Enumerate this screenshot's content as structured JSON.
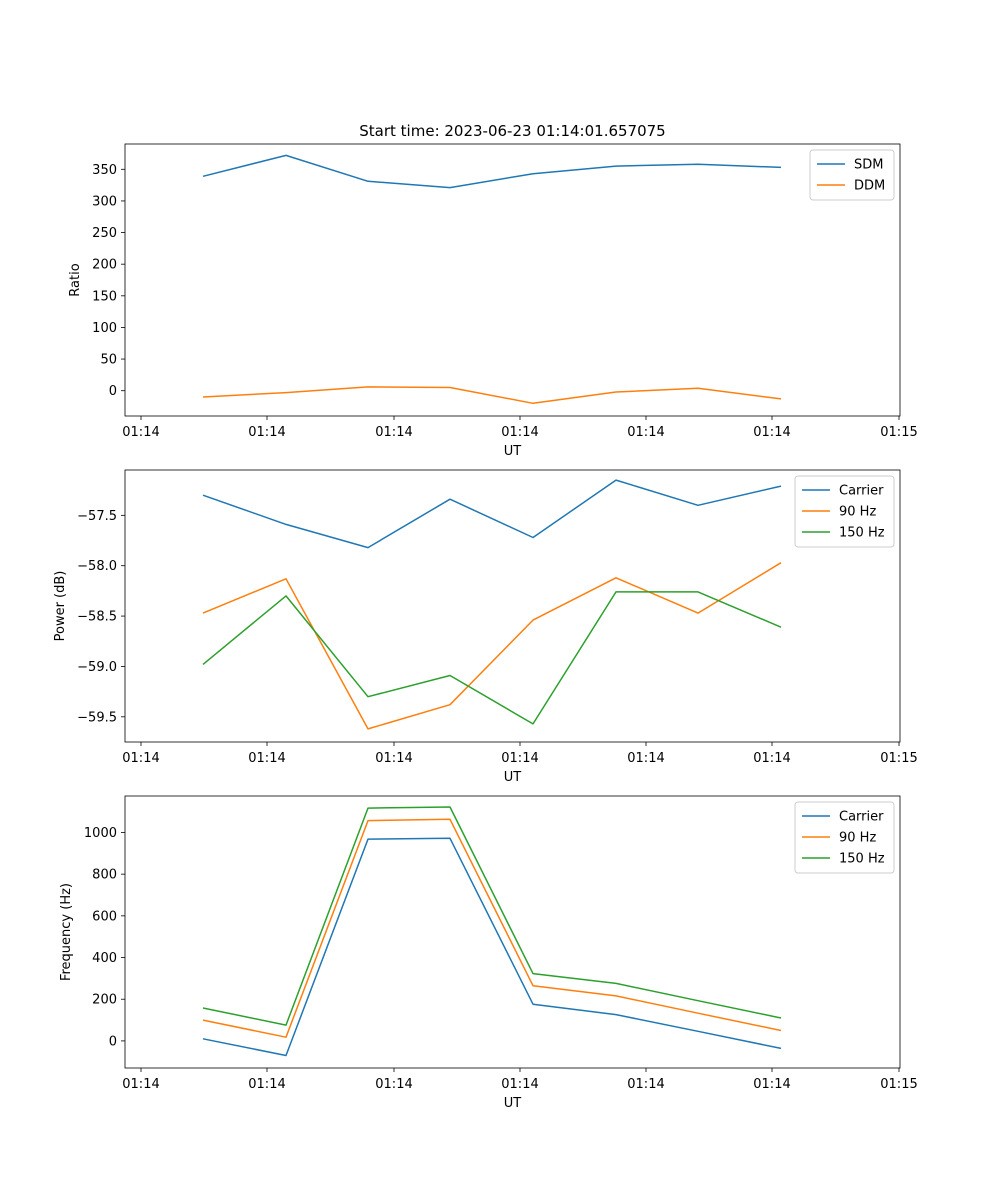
{
  "figure": {
    "title": "Start time: 2023-06-23 01:14:01.657075"
  },
  "chart_data": [
    {
      "type": "line",
      "xlabel": "UT",
      "ylabel": "Ratio",
      "xticks": [
        "01:14",
        "01:14",
        "01:14",
        "01:14",
        "01:14",
        "01:14",
        "01:15"
      ],
      "yticks": [
        0,
        50,
        100,
        150,
        200,
        250,
        300,
        350
      ],
      "ylim": [
        -40,
        390
      ],
      "grid": false,
      "legend_position": "upper-right",
      "series": [
        {
          "name": "SDM",
          "color": "#1f77b4",
          "values": [
            339,
            372,
            331,
            321,
            343,
            355,
            358,
            353
          ]
        },
        {
          "name": "DDM",
          "color": "#ff7f0e",
          "values": [
            -10,
            -3,
            6,
            5,
            -20,
            -2,
            4,
            -13
          ]
        }
      ]
    },
    {
      "type": "line",
      "xlabel": "UT",
      "ylabel": "Power (dB)",
      "xticks": [
        "01:14",
        "01:14",
        "01:14",
        "01:14",
        "01:14",
        "01:14",
        "01:15"
      ],
      "yticks": [
        -57.5,
        -58.0,
        -58.5,
        -59.0,
        -59.5
      ],
      "ytick_labels": [
        "−57.5",
        "−58.0",
        "−58.5",
        "−59.0",
        "−59.5"
      ],
      "ylim": [
        -59.75,
        -57.05
      ],
      "grid": false,
      "legend_position": "upper-right",
      "series": [
        {
          "name": "Carrier",
          "color": "#1f77b4",
          "values": [
            -57.3,
            -57.59,
            -57.82,
            -57.34,
            -57.72,
            -57.15,
            -57.4,
            -57.21
          ]
        },
        {
          "name": "90 Hz",
          "color": "#ff7f0e",
          "values": [
            -58.47,
            -58.13,
            -59.62,
            -59.38,
            -58.54,
            -58.12,
            -58.47,
            -57.97
          ]
        },
        {
          "name": "150 Hz",
          "color": "#2ca02c",
          "values": [
            -58.98,
            -58.3,
            -59.3,
            -59.09,
            -59.57,
            -58.26,
            -58.26,
            -58.61
          ]
        }
      ]
    },
    {
      "type": "line",
      "xlabel": "UT",
      "ylabel": "Frequency (Hz)",
      "xticks": [
        "01:14",
        "01:14",
        "01:14",
        "01:14",
        "01:14",
        "01:14",
        "01:15"
      ],
      "yticks": [
        0,
        200,
        400,
        600,
        800,
        1000
      ],
      "ylim": [
        -130,
        1175
      ],
      "grid": false,
      "legend_position": "upper-right",
      "series": [
        {
          "name": "Carrier",
          "color": "#1f77b4",
          "values": [
            10,
            -70,
            968,
            972,
            176,
            126,
            46,
            -36
          ]
        },
        {
          "name": "90 Hz",
          "color": "#ff7f0e",
          "values": [
            100,
            18,
            1057,
            1063,
            265,
            216,
            133,
            50
          ]
        },
        {
          "name": "150 Hz",
          "color": "#2ca02c",
          "values": [
            158,
            76,
            1117,
            1122,
            323,
            276,
            193,
            110
          ]
        }
      ]
    }
  ]
}
